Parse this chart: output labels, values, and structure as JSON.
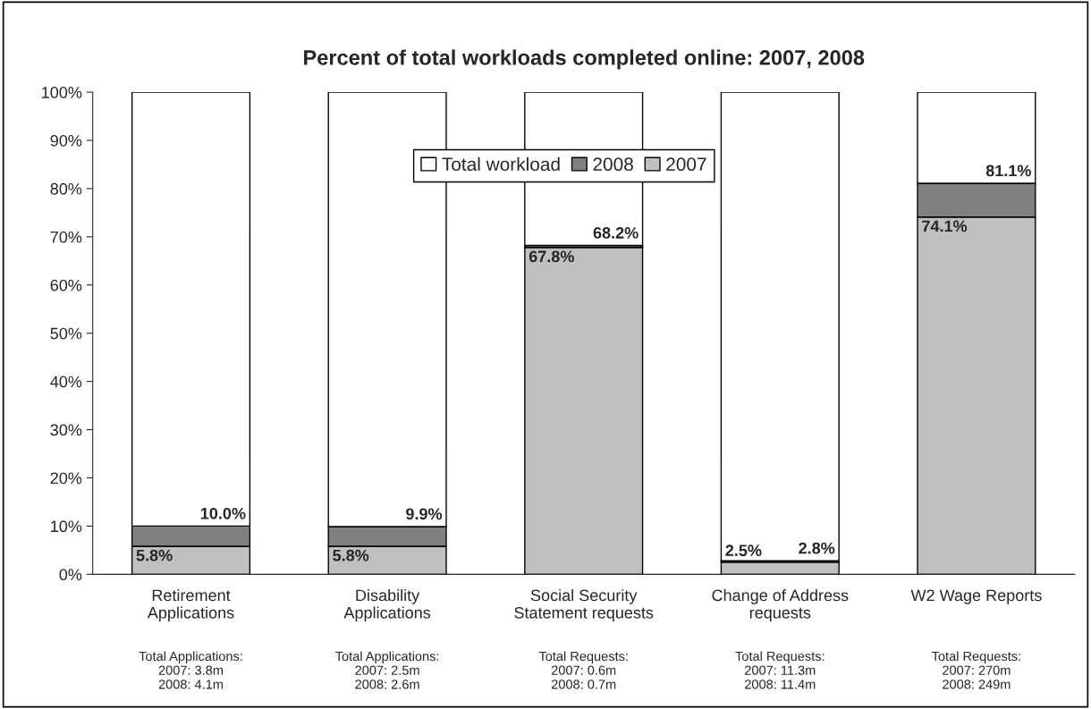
{
  "chart_data": {
    "type": "bar",
    "title": "Percent of total workloads completed online: 2007, 2008",
    "categories": [
      "Retirement\nApplications",
      "Disability\nApplications",
      "Social Security\nStatement requests",
      "Change of Address\nrequests",
      "W2 Wage Reports"
    ],
    "stacked": true,
    "series": [
      {
        "name": "2007",
        "color": "#c0c0c0",
        "values": [
          5.8,
          5.8,
          67.8,
          2.5,
          74.1
        ],
        "value_labels": [
          "5.8%",
          "5.8%",
          "67.8%",
          "2.5%",
          "74.1%"
        ]
      },
      {
        "name": "2008",
        "color": "#808080",
        "values": [
          4.2,
          4.1,
          0.4,
          0.3,
          7.0
        ]
      },
      {
        "name": "Total workload",
        "color": "#ffffff",
        "values": [
          90.0,
          90.1,
          31.8,
          97.2,
          18.9
        ]
      }
    ],
    "ylim": [
      0,
      100
    ],
    "yticks": [
      {
        "value": 0,
        "label": "0%"
      },
      {
        "value": 10,
        "label": "10%"
      },
      {
        "value": 20,
        "label": "20%"
      },
      {
        "value": 30,
        "label": "30%"
      },
      {
        "value": 40,
        "label": "40%"
      },
      {
        "value": 50,
        "label": "50%"
      },
      {
        "value": 60,
        "label": "60%"
      },
      {
        "value": 70,
        "label": "70%"
      },
      {
        "value": 80,
        "label": "80%"
      },
      {
        "value": 90,
        "label": "90%"
      },
      {
        "value": 100,
        "label": "100%"
      }
    ],
    "annotations": [
      {
        "text": "10.0%",
        "x": "Retirement\nApplications",
        "y": 10.0
      },
      {
        "text": "9.9%",
        "x": "Disability\nApplications",
        "y": 9.9
      },
      {
        "text": "68.2%",
        "x": "Social Security\nStatement requests",
        "y": 68.2
      },
      {
        "text": "2.8%",
        "x": "Change of Address\nrequests",
        "y": 2.8
      },
      {
        "text": "81.1%",
        "x": "W2 Wage Reports",
        "y": 81.1
      },
      "Total Applications:\n2007: 3.8m\n2008: 4.1m",
      "Total Applications:\n2007: 2.5m\n2008: 2.6m",
      "Total Requests:\n2007: 0.6m\n2008: 0.7m",
      "Total Requests:\n2007: 11.3m\n2008: 11.4m",
      "Total Requests:\n2007: 270m\n2008: 249m"
    ],
    "grid": false,
    "legend": "top"
  }
}
